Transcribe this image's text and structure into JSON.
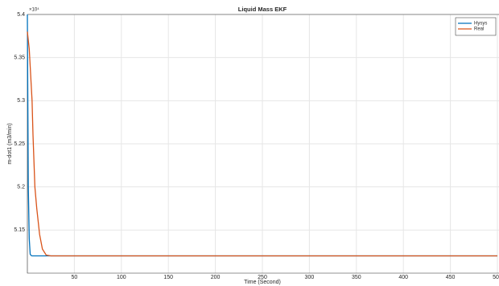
{
  "chart_data": {
    "type": "line",
    "title": "Liquid Mass EKF",
    "xlabel": "Time  (Second)",
    "ylabel": "m-dot1  (m3/min)",
    "y_exponent": "×10⁴",
    "x": [
      0,
      1,
      2,
      3,
      4,
      5,
      6,
      8,
      10,
      13,
      16,
      20,
      25,
      50,
      100,
      200,
      300,
      400,
      500
    ],
    "series": [
      {
        "name": "Hysys",
        "color": "#0072bd",
        "values": [
          54000,
          52000,
          51400,
          51220,
          51205,
          51200,
          51200,
          51200,
          51200,
          51200,
          51200,
          51200,
          51200,
          51200,
          51200,
          51200,
          51200,
          51200,
          51200
        ]
      },
      {
        "name": "Real",
        "color": "#d95319",
        "values": [
          53800,
          53700,
          53600,
          53400,
          53200,
          53000,
          52600,
          52000,
          51750,
          51450,
          51280,
          51210,
          51200,
          51200,
          51200,
          51200,
          51200,
          51200,
          51200
        ]
      }
    ],
    "xlim": [
      0,
      500
    ],
    "xticks": [
      50,
      100,
      150,
      200,
      250,
      300,
      350,
      400,
      450,
      500
    ],
    "ylim": [
      51000,
      54000
    ],
    "yticks": [
      {
        "value": 51500,
        "label": "5.15"
      },
      {
        "value": 52000,
        "label": "5.2"
      },
      {
        "value": 52500,
        "label": "5.25"
      },
      {
        "value": 53000,
        "label": "5.3"
      },
      {
        "value": 53500,
        "label": "5.35"
      },
      {
        "value": 54000,
        "label": "5.4"
      }
    ],
    "grid": true,
    "legend": "northeast"
  }
}
